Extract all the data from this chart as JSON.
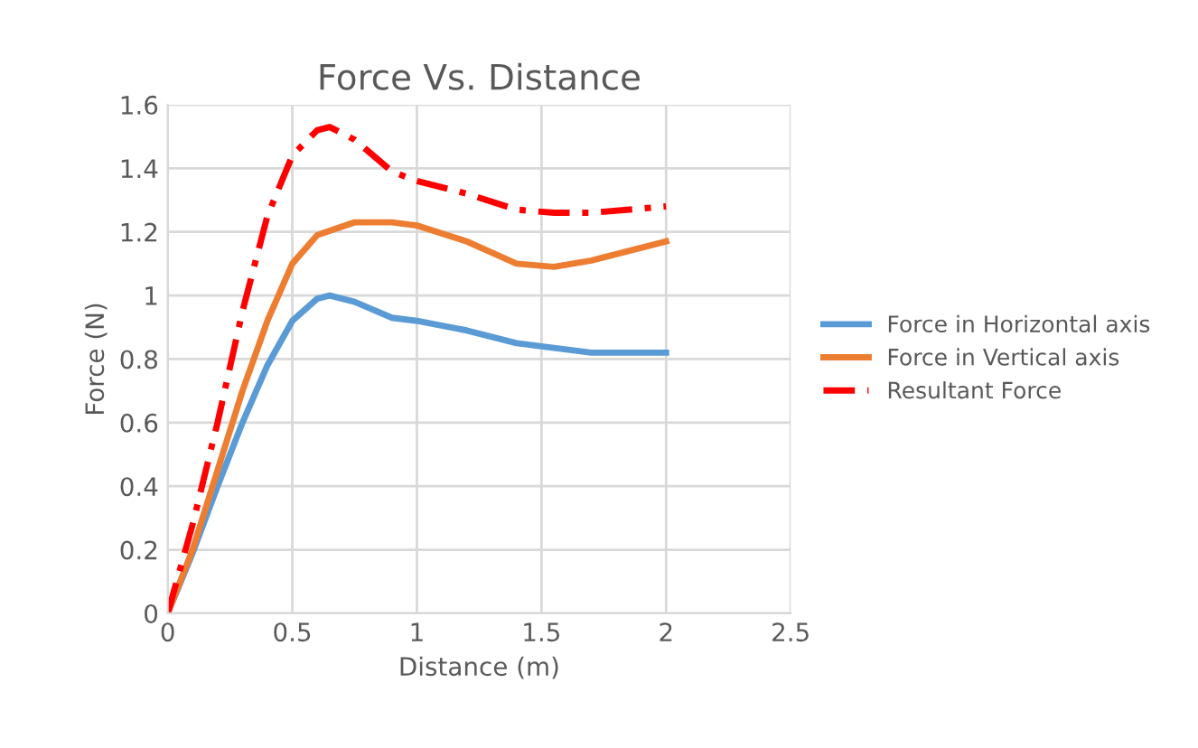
{
  "chart_data": {
    "type": "line",
    "title": "Force Vs. Distance",
    "xlabel": "Distance (m)",
    "ylabel": "Force (N)",
    "xlim": [
      0,
      2.5
    ],
    "xticks": [
      0,
      0.5,
      1,
      1.5,
      2,
      2.5
    ],
    "ylim": [
      0,
      1.6
    ],
    "yticks": [
      0,
      0.2,
      0.4,
      0.6,
      0.8,
      1,
      1.2,
      1.4,
      1.6
    ],
    "grid": true,
    "legend": "right",
    "series": [
      {
        "name": "Force in Horizontal axis",
        "color": "#5b9bd5",
        "line_style": "solid",
        "x": [
          0,
          0.1,
          0.2,
          0.3,
          0.4,
          0.5,
          0.6,
          0.65,
          0.75,
          0.9,
          1.0,
          1.2,
          1.4,
          1.5,
          1.7,
          2.0
        ],
        "values": [
          0,
          0.19,
          0.4,
          0.6,
          0.78,
          0.92,
          0.99,
          1.0,
          0.98,
          0.93,
          0.92,
          0.89,
          0.85,
          0.84,
          0.82,
          0.82
        ]
      },
      {
        "name": "Force in Vertical axis",
        "color": "#ed7d31",
        "line_style": "solid",
        "x": [
          0,
          0.1,
          0.2,
          0.3,
          0.4,
          0.5,
          0.6,
          0.75,
          0.9,
          1.0,
          1.2,
          1.4,
          1.55,
          1.7,
          2.0
        ],
        "values": [
          0,
          0.2,
          0.45,
          0.7,
          0.92,
          1.1,
          1.19,
          1.23,
          1.23,
          1.22,
          1.17,
          1.1,
          1.09,
          1.11,
          1.17
        ]
      },
      {
        "name": "Resultant Force",
        "color": "#ff0000",
        "line_style": "dashed",
        "x": [
          0,
          0.1,
          0.2,
          0.3,
          0.4,
          0.5,
          0.6,
          0.65,
          0.75,
          0.9,
          1.0,
          1.2,
          1.4,
          1.55,
          1.7,
          2.0
        ],
        "values": [
          0,
          0.28,
          0.6,
          0.95,
          1.25,
          1.44,
          1.52,
          1.53,
          1.49,
          1.39,
          1.36,
          1.32,
          1.27,
          1.26,
          1.26,
          1.28
        ]
      }
    ]
  }
}
